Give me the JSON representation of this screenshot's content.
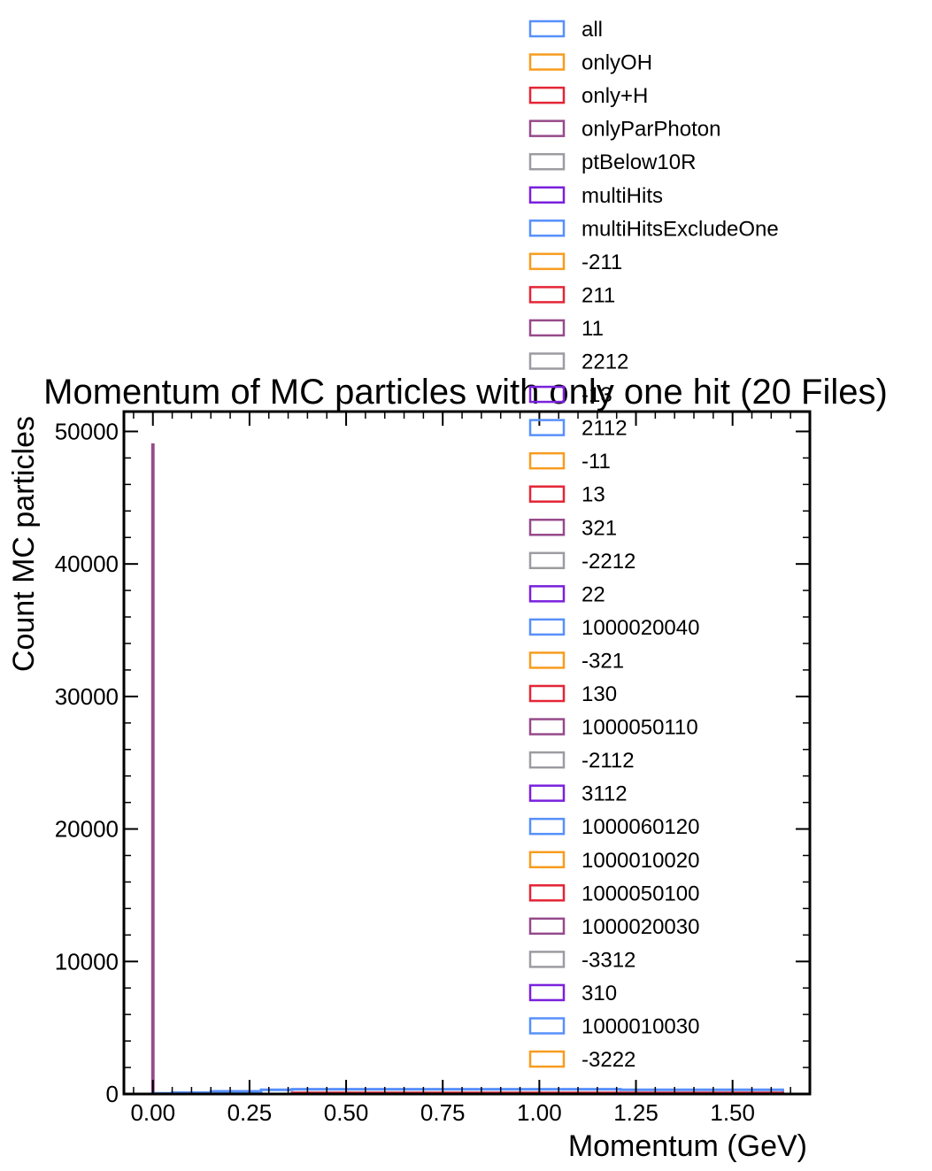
{
  "chart_data": {
    "type": "histogram",
    "title": "Momentum of MC particles with only one hit (20 Files)",
    "xlabel": "Momentum (GeV)",
    "ylabel": "Count MC particles",
    "xlim": [
      -0.075,
      1.7
    ],
    "ylim": [
      0,
      51500
    ],
    "x_ticks": [
      0.0,
      0.25,
      0.5,
      0.75,
      1.0,
      1.25,
      1.5
    ],
    "x_tick_labels": [
      "0.00",
      "0.25",
      "0.50",
      "0.75",
      "1.00",
      "1.25",
      "1.50"
    ],
    "y_ticks": [
      0,
      10000,
      20000,
      30000,
      40000,
      50000
    ],
    "y_tick_labels": [
      "0",
      "10000",
      "20000",
      "30000",
      "40000",
      "50000"
    ],
    "legend_position": "upper-right",
    "legend": [
      {
        "name": "all",
        "color": "#5790fc"
      },
      {
        "name": "onlyOH",
        "color": "#f89c20"
      },
      {
        "name": "only+H",
        "color": "#e42536"
      },
      {
        "name": "onlyParPhoton",
        "color": "#964a8b"
      },
      {
        "name": "ptBelow10R",
        "color": "#9c9ca1"
      },
      {
        "name": "multiHits",
        "color": "#7a21dd"
      },
      {
        "name": "multiHitsExcludeOne",
        "color": "#5790fc"
      },
      {
        "name": "-211",
        "color": "#f89c20"
      },
      {
        "name": "211",
        "color": "#e42536"
      },
      {
        "name": "11",
        "color": "#964a8b"
      },
      {
        "name": "2212",
        "color": "#9c9ca1"
      },
      {
        "name": "-13",
        "color": "#7a21dd"
      },
      {
        "name": "2112",
        "color": "#5790fc"
      },
      {
        "name": "-11",
        "color": "#f89c20"
      },
      {
        "name": "13",
        "color": "#e42536"
      },
      {
        "name": "321",
        "color": "#964a8b"
      },
      {
        "name": "-2212",
        "color": "#9c9ca1"
      },
      {
        "name": "22",
        "color": "#7a21dd"
      },
      {
        "name": "1000020040",
        "color": "#5790fc"
      },
      {
        "name": "-321",
        "color": "#f89c20"
      },
      {
        "name": "130",
        "color": "#e42536"
      },
      {
        "name": "1000050110",
        "color": "#964a8b"
      },
      {
        "name": "-2112",
        "color": "#9c9ca1"
      },
      {
        "name": "3112",
        "color": "#7a21dd"
      },
      {
        "name": "1000060120",
        "color": "#5790fc"
      },
      {
        "name": "1000010020",
        "color": "#f89c20"
      },
      {
        "name": "1000050100",
        "color": "#e42536"
      },
      {
        "name": "1000020030",
        "color": "#964a8b"
      },
      {
        "name": "-3312",
        "color": "#9c9ca1"
      },
      {
        "name": "310",
        "color": "#7a21dd"
      },
      {
        "name": "1000010030",
        "color": "#5790fc"
      },
      {
        "name": "-3222",
        "color": "#f89c20"
      }
    ],
    "series": [
      {
        "legend_index": 3,
        "bin_edges": [
          -0.001,
          0.001,
          1.63
        ],
        "counts": [
          49000,
          0
        ]
      },
      {
        "legend_index": 0,
        "bin_edges": [
          0.0,
          0.05,
          0.15,
          0.28,
          0.36,
          1.21,
          1.63
        ],
        "counts": [
          50,
          100,
          200,
          320,
          360,
          320
        ]
      },
      {
        "legend_index": 2,
        "bin_edges": [
          0.36,
          1.63
        ],
        "counts": [
          80
        ]
      }
    ]
  }
}
